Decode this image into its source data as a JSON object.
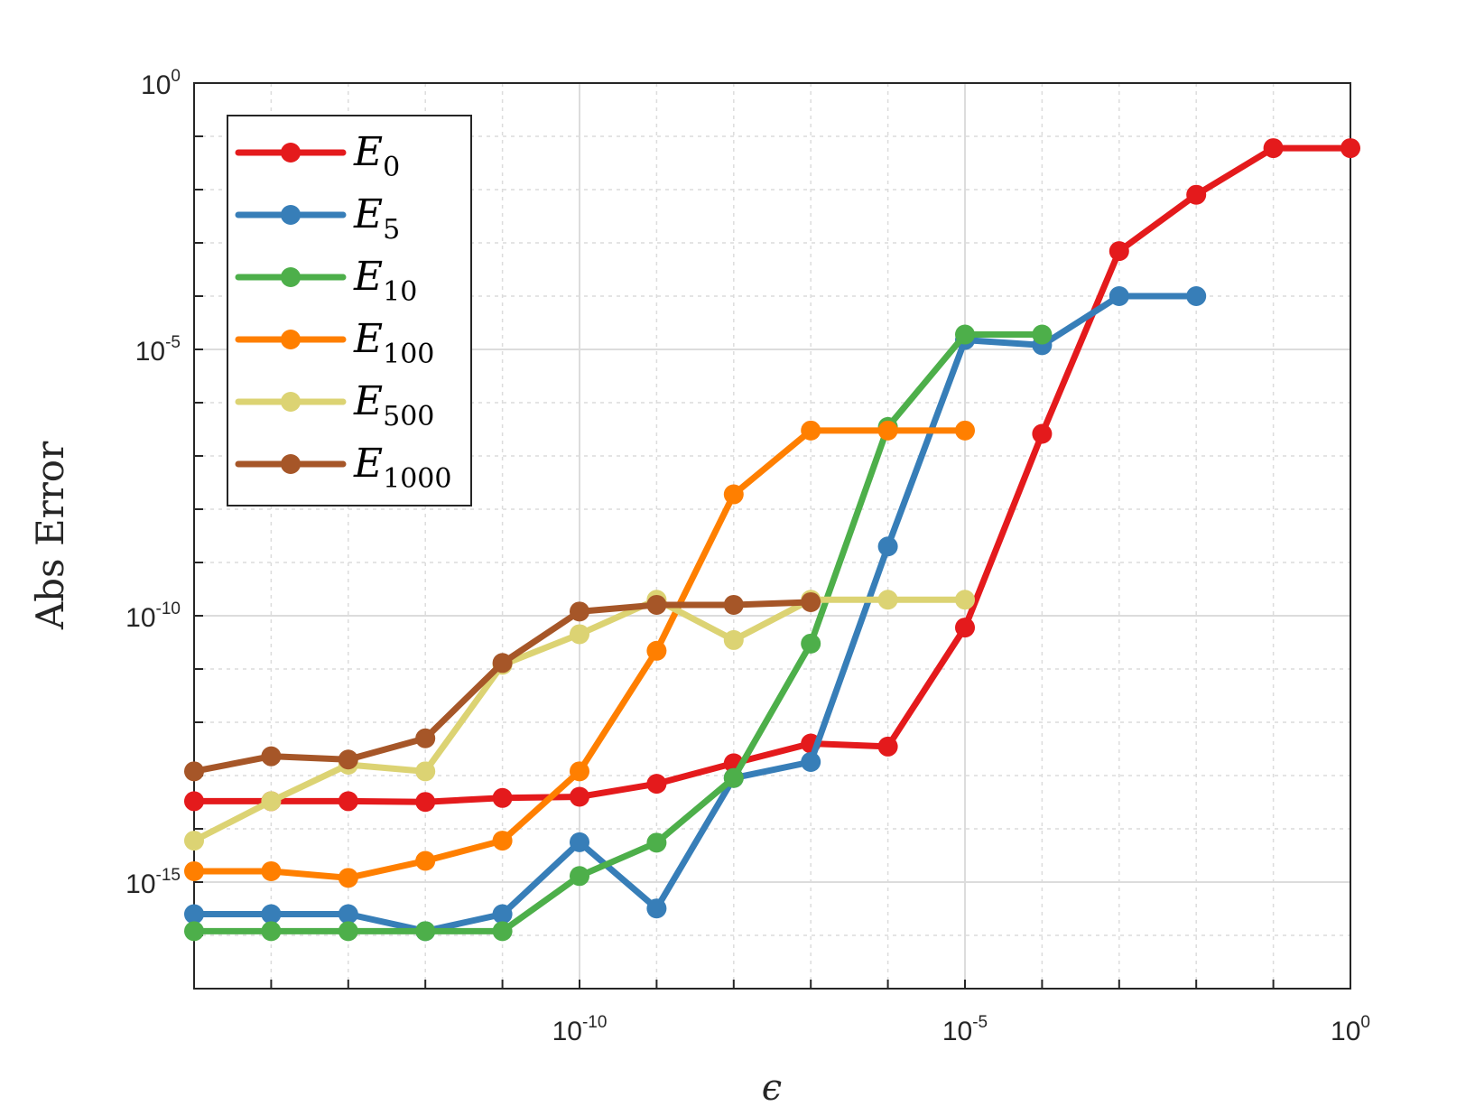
{
  "chart_data": {
    "type": "line",
    "xlabel": "ϵ",
    "ylabel": "Abs Error",
    "x_scale": "log",
    "y_scale": "log",
    "xlim": [
      1e-15,
      1
    ],
    "ylim": [
      1e-17,
      1
    ],
    "grid": true,
    "legend_position": "top-left",
    "x_ticks": [
      {
        "value": 1e-10,
        "base": "10",
        "exp": "-10"
      },
      {
        "value": 1e-05,
        "base": "10",
        "exp": "-5"
      },
      {
        "value": 1,
        "base": "10",
        "exp": "0"
      }
    ],
    "y_ticks": [
      {
        "value": 1e-15,
        "base": "10",
        "exp": "-15"
      },
      {
        "value": 1e-10,
        "base": "10",
        "exp": "-10"
      },
      {
        "value": 1e-05,
        "base": "10",
        "exp": "-5"
      },
      {
        "value": 1,
        "base": "10",
        "exp": "0"
      }
    ],
    "series": [
      {
        "name": "E_0",
        "label_main": "E",
        "label_sub": "0",
        "color": "#e41a1c",
        "x": [
          1e-15,
          1e-14,
          1e-13,
          1e-12,
          1e-11,
          1e-10,
          1e-09,
          1e-08,
          1e-07,
          1e-06,
          1e-05,
          0.0001,
          0.001,
          0.01,
          0.1,
          1
        ],
        "y": [
          3.3e-14,
          3.3e-14,
          3.3e-14,
          3.2e-14,
          3.8e-14,
          4e-14,
          7e-14,
          1.7e-13,
          4e-13,
          3.5e-13,
          6e-11,
          2.6e-07,
          0.0007,
          0.008,
          0.06,
          0.06
        ]
      },
      {
        "name": "E_5",
        "label_main": "E",
        "label_sub": "5",
        "color": "#377eb8",
        "x": [
          1e-15,
          1e-14,
          1e-13,
          1e-12,
          1e-11,
          1e-10,
          1e-09,
          1e-08,
          1e-07,
          1e-06,
          1e-05,
          0.0001,
          0.001,
          0.01
        ],
        "y": [
          2.5e-16,
          2.5e-16,
          2.5e-16,
          1.2e-16,
          2.5e-16,
          5.6e-15,
          3.2e-16,
          9e-14,
          1.8e-13,
          2e-09,
          1.5e-05,
          1.2e-05,
          0.0001,
          0.0001
        ]
      },
      {
        "name": "E_10",
        "label_main": "E",
        "label_sub": "10",
        "color": "#4daf4a",
        "x": [
          1e-15,
          1e-14,
          1e-13,
          1e-12,
          1e-11,
          1e-10,
          1e-09,
          1e-08,
          1e-07,
          1e-06,
          1e-05,
          0.0001
        ],
        "y": [
          1.2e-16,
          1.2e-16,
          1.2e-16,
          1.2e-16,
          1.2e-16,
          1.3e-15,
          5.5e-15,
          9e-14,
          3e-11,
          3.5e-07,
          1.9e-05,
          1.9e-05
        ]
      },
      {
        "name": "E_100",
        "label_main": "E",
        "label_sub": "100",
        "color": "#ff7f00",
        "x": [
          1e-15,
          1e-14,
          1e-13,
          1e-12,
          1e-11,
          1e-10,
          1e-09,
          1e-08,
          1e-07,
          1e-06,
          1e-05
        ],
        "y": [
          1.6e-15,
          1.6e-15,
          1.2e-15,
          2.5e-15,
          6e-15,
          1.2e-13,
          2.2e-11,
          1.9e-08,
          3e-07,
          3e-07,
          3e-07
        ]
      },
      {
        "name": "E_500",
        "label_main": "E",
        "label_sub": "500",
        "color": "#dcd373",
        "x": [
          1e-15,
          1e-14,
          1e-13,
          1e-12,
          1e-11,
          1e-10,
          1e-09,
          1e-08,
          1e-07,
          1e-06,
          1e-05
        ],
        "y": [
          6e-15,
          3.3e-14,
          1.6e-13,
          1.2e-13,
          1.2e-11,
          4.5e-11,
          2e-10,
          3.5e-11,
          2e-10,
          2e-10,
          2e-10
        ]
      },
      {
        "name": "E_1000",
        "label_main": "E",
        "label_sub": "1000",
        "color": "#a65628",
        "x": [
          1e-15,
          1e-14,
          1e-13,
          1e-12,
          1e-11,
          1e-10,
          1e-09,
          1e-08,
          1e-07
        ],
        "y": [
          1.2e-13,
          2.3e-13,
          2e-13,
          5e-13,
          1.3e-11,
          1.2e-10,
          1.6e-10,
          1.6e-10,
          1.8e-10
        ]
      }
    ]
  }
}
